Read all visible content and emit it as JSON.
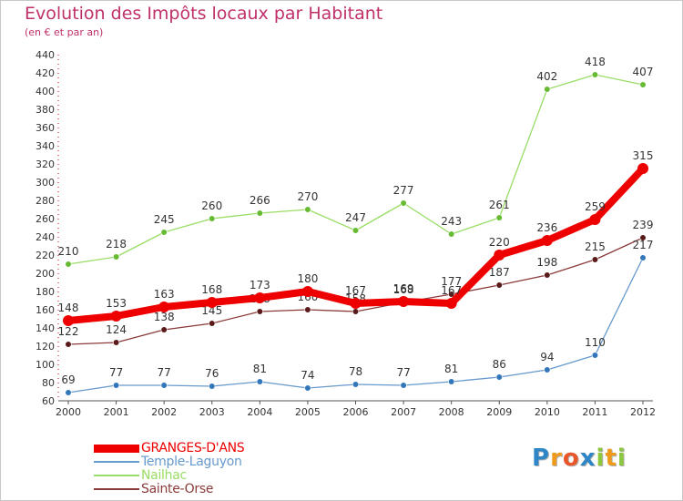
{
  "title": "Evolution des Impôts locaux par Habitant",
  "subtitle": "(en € et par an)",
  "logo": {
    "text": "Proxiti",
    "letters": [
      {
        "char": "P",
        "color": "#2f86c6"
      },
      {
        "char": "r",
        "color": "#f09a1c"
      },
      {
        "char": "o",
        "color": "#e8562a"
      },
      {
        "char": "x",
        "color": "#2f86c6"
      },
      {
        "char": "i",
        "color": "#8dc63f"
      },
      {
        "char": "t",
        "color": "#f09a1c"
      },
      {
        "char": "i",
        "color": "#8dc63f"
      }
    ]
  },
  "chart_data": {
    "type": "line",
    "title": "Evolution des Impôts locaux par Habitant",
    "subtitle": "(en € et par an)",
    "xlabel": "",
    "ylabel": "",
    "ylim": [
      60,
      440
    ],
    "ytick_step": 20,
    "grid": false,
    "legend_position": "bottom-left",
    "x": [
      "2000",
      "2001",
      "2002",
      "2003",
      "2004",
      "2005",
      "2006",
      "2007",
      "2008",
      "2009",
      "2010",
      "2011",
      "2012"
    ],
    "yticks": [
      "60",
      "80",
      "100",
      "120",
      "140",
      "160",
      "180",
      "200",
      "220",
      "240",
      "260",
      "280",
      "300",
      "320",
      "340",
      "360",
      "380",
      "400",
      "420",
      "440"
    ],
    "series": [
      {
        "name": "Nailhac",
        "color": "#99dd66",
        "marker": "#66bb33",
        "values": [
          210,
          218,
          245,
          260,
          266,
          270,
          247,
          277,
          243,
          261,
          402,
          418,
          407
        ]
      },
      {
        "name": "Sainte-Orse",
        "color": "#8b3a3a",
        "marker": "#5a1a1a",
        "values": [
          122,
          124,
          138,
          145,
          158,
          160,
          158,
          168,
          177,
          187,
          198,
          215,
          239
        ]
      },
      {
        "name": "Temple-Laguyon",
        "color": "#6699cc",
        "marker": "#3377bb",
        "values": [
          69,
          77,
          77,
          76,
          81,
          74,
          78,
          77,
          81,
          86,
          94,
          110,
          217
        ]
      },
      {
        "name": "GRANGES-D'ANS",
        "color": "#ee0000",
        "marker": "#ee0000",
        "values": [
          148,
          153,
          163,
          168,
          173,
          180,
          167,
          169,
          167,
          220,
          236,
          259,
          315
        ]
      }
    ],
    "legend": [
      {
        "name": "GRANGES-D'ANS",
        "color": "#ee0000"
      },
      {
        "name": "Temple-Laguyon",
        "color": "#6699cc"
      },
      {
        "name": "Nailhac",
        "color": "#99dd66"
      },
      {
        "name": "Sainte-Orse",
        "color": "#8b3a3a"
      }
    ]
  }
}
